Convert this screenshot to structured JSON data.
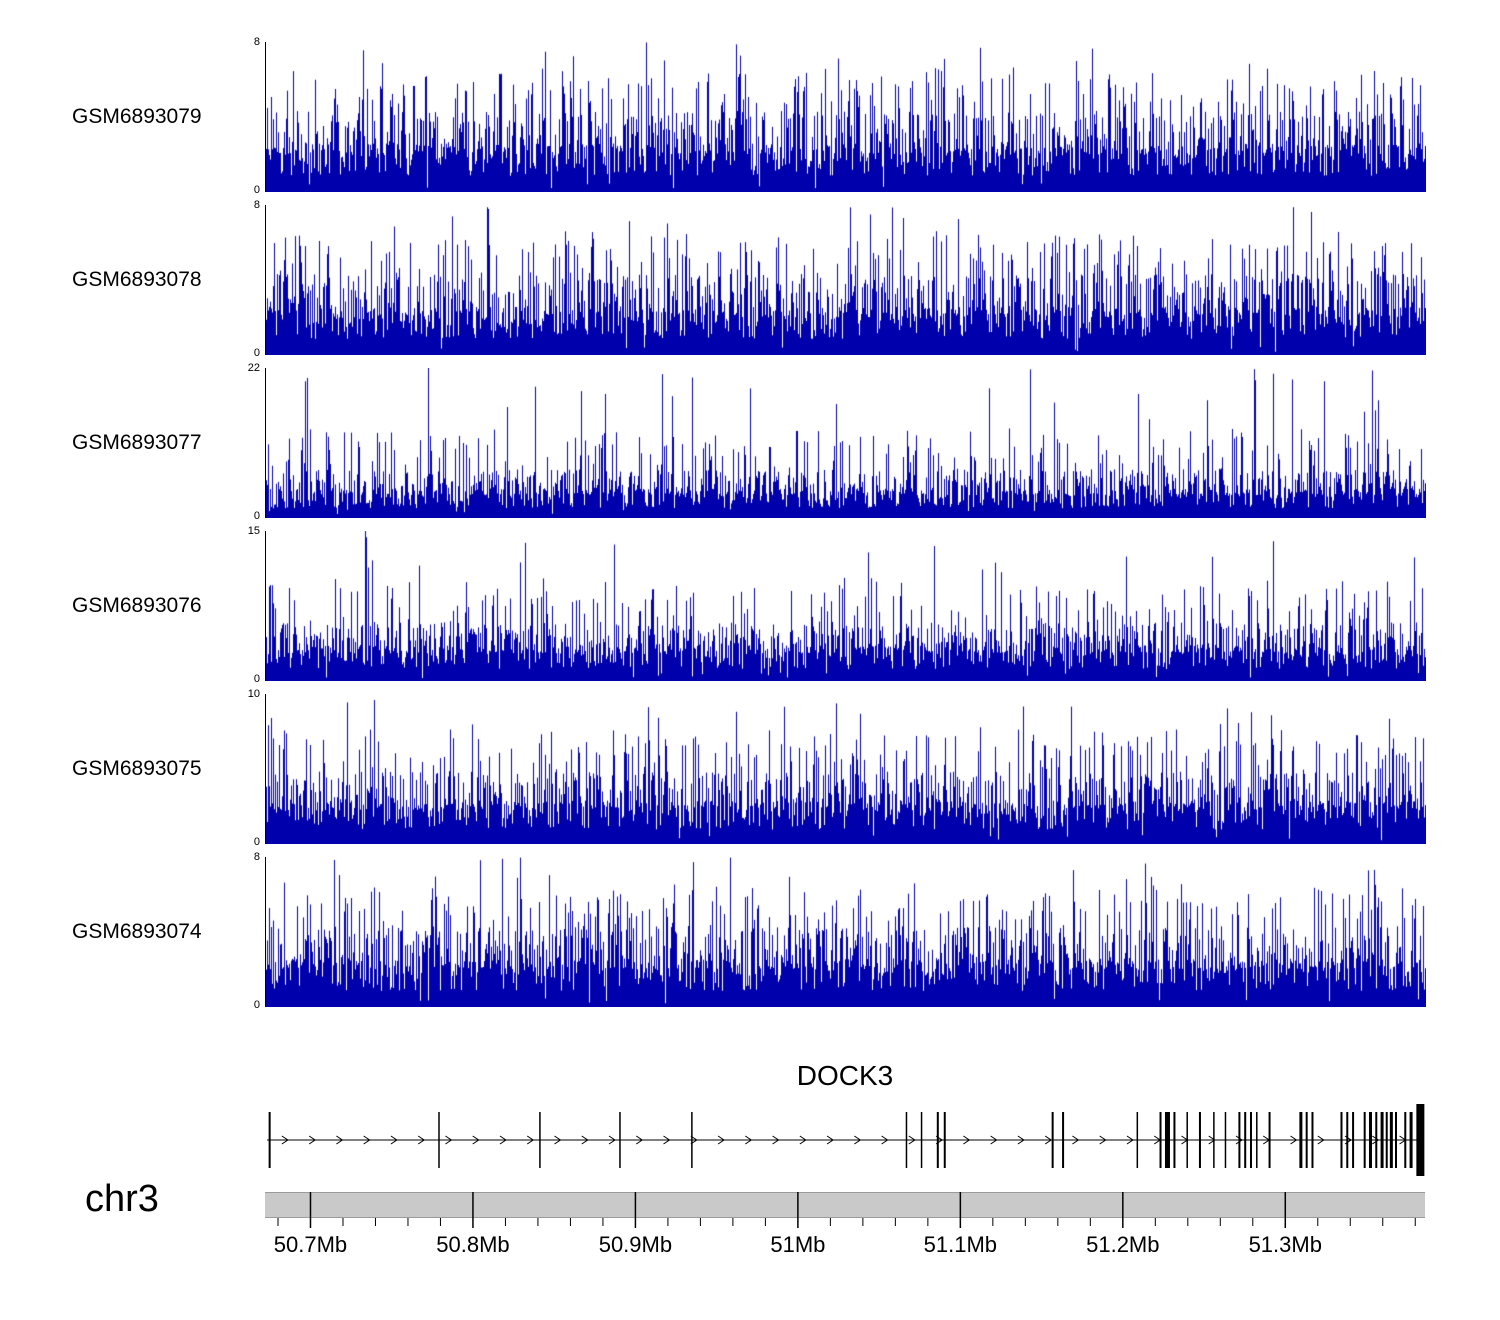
{
  "page": {
    "background": "#ffffff"
  },
  "chart_data": {
    "type": "area",
    "subtype": "genome-browser-coverage-tracks",
    "signal_color": "#0000AC",
    "tracks": [
      {
        "name": "GSM6893079",
        "ymin": 0,
        "ymax": 8
      },
      {
        "name": "GSM6893078",
        "ymin": 0,
        "ymax": 8
      },
      {
        "name": "GSM6893077",
        "ymin": 0,
        "ymax": 22
      },
      {
        "name": "GSM6893076",
        "ymin": 0,
        "ymax": 15
      },
      {
        "name": "GSM6893075",
        "ymin": 0,
        "ymax": 10
      },
      {
        "name": "GSM6893074",
        "ymin": 0,
        "ymax": 8
      }
    ],
    "gene": {
      "name": "DOCK3",
      "arrow_direction": "right",
      "exons": [
        [
          0.004,
          2
        ],
        [
          0.15,
          1.5
        ],
        [
          0.237,
          1.5
        ],
        [
          0.306,
          1.5
        ],
        [
          0.368,
          1.5
        ],
        [
          0.553,
          1.5
        ],
        [
          0.566,
          1.5
        ],
        [
          0.58,
          2
        ],
        [
          0.586,
          2
        ],
        [
          0.679,
          2
        ],
        [
          0.688,
          2
        ],
        [
          0.752,
          1.5
        ],
        [
          0.772,
          2
        ],
        [
          0.778,
          5
        ],
        [
          0.784,
          2
        ],
        [
          0.795,
          1.5
        ],
        [
          0.806,
          2
        ],
        [
          0.818,
          1.5
        ],
        [
          0.828,
          1.5
        ],
        [
          0.84,
          2
        ],
        [
          0.845,
          2
        ],
        [
          0.85,
          2
        ],
        [
          0.855,
          1.5
        ],
        [
          0.866,
          2
        ],
        [
          0.893,
          3
        ],
        [
          0.898,
          2
        ],
        [
          0.903,
          2
        ],
        [
          0.928,
          2
        ],
        [
          0.933,
          2
        ],
        [
          0.938,
          2
        ],
        [
          0.948,
          2
        ],
        [
          0.953,
          3
        ],
        [
          0.958,
          2
        ],
        [
          0.963,
          3
        ],
        [
          0.967,
          2
        ],
        [
          0.971,
          3
        ],
        [
          0.975,
          2
        ],
        [
          0.983,
          2
        ],
        [
          0.988,
          3
        ],
        [
          0.996,
          8
        ]
      ]
    },
    "chromosome": "chr3",
    "x_axis": {
      "unit": "Mb",
      "range_mb": [
        50.672,
        51.386
      ],
      "major_ticks": [
        {
          "value": 50.7,
          "label": "50.7Mb"
        },
        {
          "value": 50.8,
          "label": "50.8Mb"
        },
        {
          "value": 50.9,
          "label": "50.9Mb"
        },
        {
          "value": 51.0,
          "label": "51Mb"
        },
        {
          "value": 51.1,
          "label": "51.1Mb"
        },
        {
          "value": 51.2,
          "label": "51.2Mb"
        },
        {
          "value": 51.3,
          "label": "51.3Mb"
        }
      ],
      "minor_tick_interval_mb": 0.02
    }
  }
}
